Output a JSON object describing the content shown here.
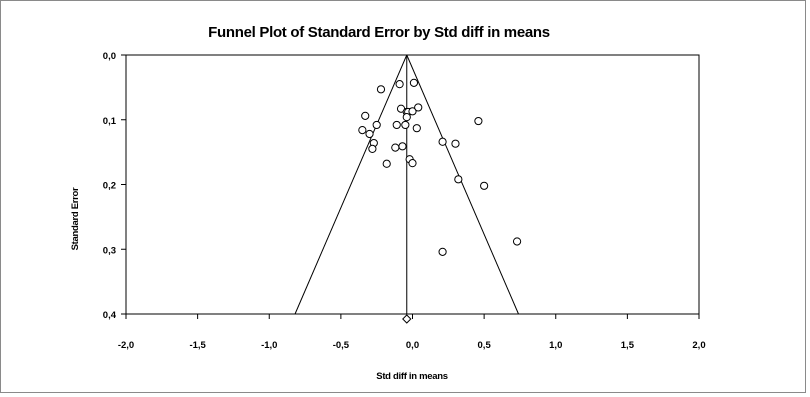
{
  "chart_data": {
    "type": "scatter",
    "title": "Funnel Plot of Standard Error by Std diff in means",
    "xlabel": "Std diff in means",
    "ylabel": "Standard Error",
    "xlim": [
      -2.0,
      2.0
    ],
    "ylim": [
      0.0,
      0.4
    ],
    "y_inverted": true,
    "x_ticks": [
      "-2,0",
      "-1,5",
      "-1,0",
      "-0,5",
      "0,0",
      "0,5",
      "1,0",
      "1,5",
      "2,0"
    ],
    "x_tick_values": [
      -2.0,
      -1.5,
      -1.0,
      -0.5,
      0.0,
      0.5,
      1.0,
      1.5,
      2.0
    ],
    "y_ticks": [
      "0,0",
      "0,1",
      "0,2",
      "0,3",
      "0,4"
    ],
    "y_tick_values": [
      0.0,
      0.1,
      0.2,
      0.3,
      0.4
    ],
    "grid": false,
    "legend": "none",
    "funnel": {
      "center": -0.04,
      "apex_se": 0.0,
      "base_se": 0.4,
      "base_left": -0.82,
      "base_right": 0.74
    },
    "summary_diamond": {
      "x": -0.04,
      "se": 0.4
    },
    "points": [
      {
        "x": -0.09,
        "y": 0.045
      },
      {
        "x": 0.01,
        "y": 0.043
      },
      {
        "x": -0.22,
        "y": 0.053
      },
      {
        "x": -0.08,
        "y": 0.083
      },
      {
        "x": -0.04,
        "y": 0.088
      },
      {
        "x": -0.03,
        "y": 0.088
      },
      {
        "x": 0.0,
        "y": 0.087
      },
      {
        "x": 0.04,
        "y": 0.081
      },
      {
        "x": -0.04,
        "y": 0.096
      },
      {
        "x": -0.33,
        "y": 0.094
      },
      {
        "x": 0.46,
        "y": 0.102
      },
      {
        "x": -0.11,
        "y": 0.108
      },
      {
        "x": -0.05,
        "y": 0.108
      },
      {
        "x": -0.25,
        "y": 0.108
      },
      {
        "x": 0.03,
        "y": 0.113
      },
      {
        "x": -0.35,
        "y": 0.116
      },
      {
        "x": -0.3,
        "y": 0.122
      },
      {
        "x": 0.21,
        "y": 0.134
      },
      {
        "x": 0.3,
        "y": 0.137
      },
      {
        "x": -0.27,
        "y": 0.136
      },
      {
        "x": -0.28,
        "y": 0.145
      },
      {
        "x": -0.07,
        "y": 0.141
      },
      {
        "x": -0.12,
        "y": 0.143
      },
      {
        "x": -0.02,
        "y": 0.161
      },
      {
        "x": 0.0,
        "y": 0.167
      },
      {
        "x": -0.18,
        "y": 0.168
      },
      {
        "x": 0.32,
        "y": 0.192
      },
      {
        "x": 0.5,
        "y": 0.202
      },
      {
        "x": 0.73,
        "y": 0.288
      },
      {
        "x": 0.21,
        "y": 0.304
      }
    ]
  }
}
